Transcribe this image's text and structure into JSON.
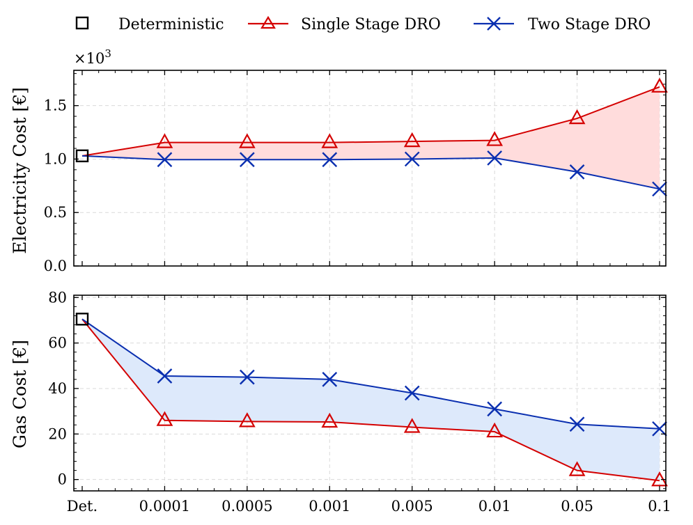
{
  "chart_data": {
    "type": "line",
    "categories": [
      "Det.",
      "0.0001",
      "0.0005",
      "0.001",
      "0.005",
      "0.01",
      "0.05",
      "0.1"
    ],
    "legend": {
      "deterministic": "Deterministic",
      "single": "Single Stage DRO",
      "two": "Two Stage DRO"
    },
    "colors": {
      "deterministic": "#000000",
      "single": "#d40000",
      "two": "#0a2fb0",
      "fill_top": "#ffdcdc",
      "fill_bottom": "#dde9fb"
    },
    "panels": [
      {
        "ylabel": "Electricity Cost [€]",
        "multiplier": "×10",
        "multiplier_exp": "3",
        "ylim": [
          0,
          1.83
        ],
        "yticks": [
          0.0,
          0.5,
          1.0,
          1.5
        ],
        "ytick_labels": [
          "0.0",
          "0.5",
          "1.0",
          "1.5"
        ],
        "deterministic": 1.03,
        "series": [
          {
            "name": "Single Stage DRO",
            "values": [
              1.03,
              1.155,
              1.155,
              1.155,
              1.165,
              1.175,
              1.38,
              1.675
            ]
          },
          {
            "name": "Two Stage DRO",
            "values": [
              1.03,
              0.995,
              0.995,
              0.995,
              1.0,
              1.01,
              0.88,
              0.72
            ]
          }
        ]
      },
      {
        "ylabel": "Gas Cost [€]",
        "ylim": [
          -5,
          81
        ],
        "yticks": [
          0,
          20,
          40,
          60,
          80
        ],
        "ytick_labels": [
          "0",
          "20",
          "40",
          "60",
          "80"
        ],
        "deterministic": 70.5,
        "series": [
          {
            "name": "Single Stage DRO",
            "values": [
              70.5,
              26,
              25.5,
              25.3,
              23,
              21,
              4,
              -0.5
            ]
          },
          {
            "name": "Two Stage DRO",
            "values": [
              70.5,
              45.5,
              45,
              44,
              38,
              31,
              24.3,
              22.3
            ]
          }
        ]
      }
    ]
  }
}
